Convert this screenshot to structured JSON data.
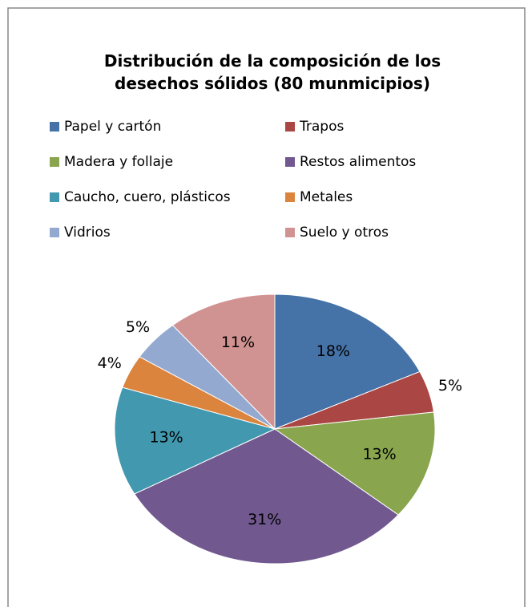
{
  "chart_data": {
    "type": "pie",
    "title": "Distribución de la composición de los desechos sólidos (80 munmicipios)",
    "categories": [
      "Papel y cartón",
      "Trapos",
      "Madera y follaje",
      "Restos alimentos",
      "Caucho, cuero, plásticos",
      "Metales",
      "Vidrios",
      "Suelo y otros"
    ],
    "values": [
      18,
      5,
      13,
      31,
      13,
      4,
      5,
      11
    ],
    "value_labels": [
      "18%",
      "5%",
      "13%",
      "31%",
      "13%",
      "4%",
      "5%",
      "11%"
    ],
    "colors": [
      "#4572a7",
      "#aa4643",
      "#89a54e",
      "#71588f",
      "#4198af",
      "#db843d",
      "#93a9cf",
      "#d19392"
    ],
    "legend": "top"
  }
}
